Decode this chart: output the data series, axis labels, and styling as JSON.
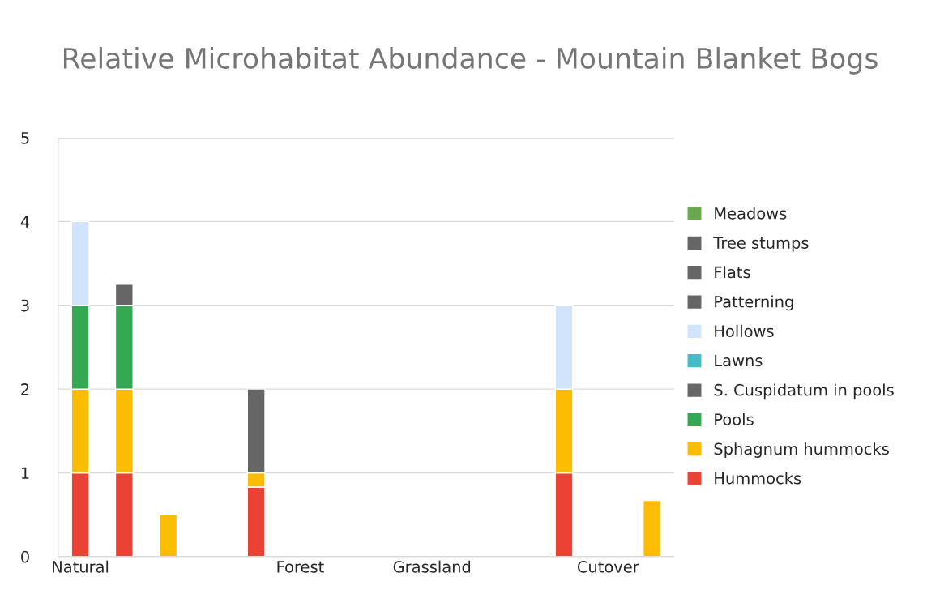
{
  "chart_data": {
    "type": "bar",
    "title": "Relative Microhabitat Abundance - Mountain Blanket Bogs",
    "categories": [
      "Natural",
      null,
      null,
      null,
      null,
      "Forest",
      null,
      null,
      "Grassland",
      null,
      null,
      null,
      "Cutover",
      null
    ],
    "stacked": true,
    "series": [
      {
        "name": "Hummocks",
        "color": "#ea4335",
        "values": [
          1,
          1,
          null,
          null,
          0.83,
          null,
          null,
          null,
          null,
          null,
          null,
          1,
          null,
          null
        ]
      },
      {
        "name": "Sphagnum hummocks",
        "color": "#fbbc04",
        "values": [
          1,
          1,
          0.5,
          null,
          0.17,
          null,
          null,
          null,
          null,
          null,
          null,
          1,
          null,
          0.67
        ]
      },
      {
        "name": "Pools",
        "color": "#34a853",
        "values": [
          1,
          1,
          null,
          null,
          null,
          null,
          null,
          null,
          null,
          null,
          null,
          null,
          null,
          null
        ]
      },
      {
        "name": "S. Cuspidatum in pools",
        "color": "#666666",
        "values": [
          null,
          null,
          null,
          null,
          null,
          null,
          null,
          null,
          null,
          null,
          null,
          null,
          null,
          null
        ]
      },
      {
        "name": "Lawns",
        "color": "#46bdc6",
        "values": [
          null,
          null,
          null,
          null,
          null,
          null,
          null,
          null,
          null,
          null,
          null,
          null,
          null,
          null
        ]
      },
      {
        "name": "Hollows",
        "color": "#d2e3fc",
        "values": [
          1,
          null,
          null,
          null,
          null,
          null,
          null,
          null,
          null,
          null,
          null,
          1,
          null,
          null
        ]
      },
      {
        "name": "Patterning",
        "color": "#666666",
        "values": [
          null,
          0.25,
          null,
          null,
          null,
          null,
          null,
          null,
          null,
          null,
          null,
          null,
          null,
          null
        ]
      },
      {
        "name": "Flats",
        "color": "#666666",
        "values": [
          null,
          null,
          null,
          null,
          null,
          null,
          null,
          null,
          null,
          null,
          null,
          null,
          null,
          null
        ]
      },
      {
        "name": "Tree stumps",
        "color": "#666666",
        "values": [
          null,
          null,
          null,
          null,
          1,
          null,
          null,
          null,
          null,
          null,
          null,
          null,
          null,
          null
        ]
      },
      {
        "name": "Meadows",
        "color": "#6aa84f",
        "values": [
          null,
          null,
          null,
          null,
          null,
          null,
          null,
          null,
          null,
          null,
          null,
          null,
          null,
          null
        ]
      }
    ],
    "ylim": [
      0,
      5
    ],
    "yticks": [
      0,
      1,
      2,
      3,
      4,
      5
    ],
    "grid": "y",
    "legend": "right"
  }
}
